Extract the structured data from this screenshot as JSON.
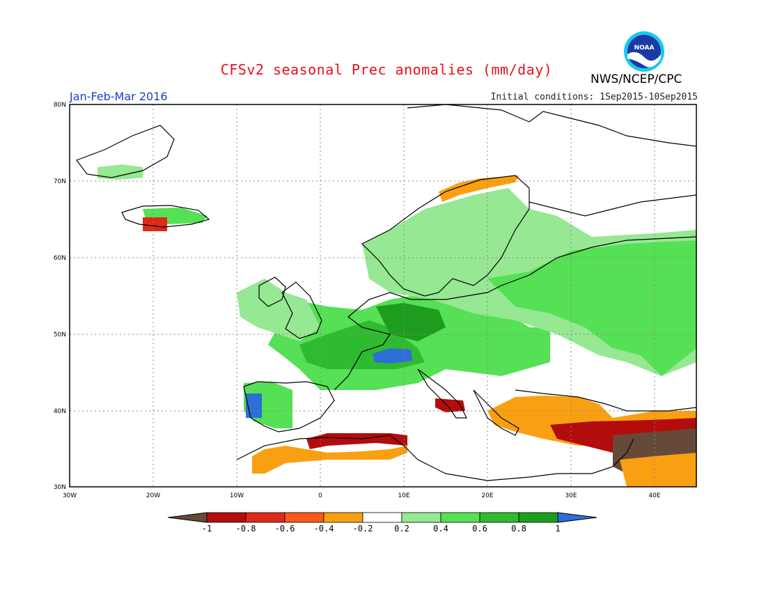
{
  "title": "CFSv2 seasonal Prec anomalies (mm/day)",
  "agency": "NWS/NCEP/CPC",
  "logo_text": "NOAA",
  "period": "Jan-Feb-Mar 2016",
  "initial_conditions": "Initial conditions: 1Sep2015-10Sep2015",
  "map": {
    "lon_range": [
      -30,
      45
    ],
    "lat_range": [
      30,
      80
    ],
    "lat_ticks": [
      "30N",
      "40N",
      "50N",
      "60N",
      "70N",
      "80N"
    ],
    "lon_ticks": [
      "30W",
      "20W",
      "10W",
      "0",
      "10E",
      "20E",
      "30E",
      "40E"
    ]
  },
  "colorbar": {
    "labels": [
      "-1",
      "-0.8",
      "-0.6",
      "-0.4",
      "-0.2",
      "0.2",
      "0.4",
      "0.6",
      "0.8",
      "1"
    ],
    "colors": [
      "#654a3a",
      "#b30c0c",
      "#dd2a1a",
      "#f75a1c",
      "#f9a012",
      "#ffffff",
      "#96e892",
      "#55e055",
      "#2fbb2f",
      "#1e9c1e",
      "#2d6fd6"
    ]
  },
  "colors": {
    "title": "#e8101a",
    "period": "#1b3cc8",
    "grid": "#888888"
  },
  "anomaly_regions": [
    {
      "name": "western-central-europe",
      "level": "0.6"
    },
    {
      "name": "alps",
      "level": "1"
    },
    {
      "name": "portugal",
      "level": "1"
    },
    {
      "name": "scandinavia-russia",
      "level": "0.4"
    },
    {
      "name": "north-africa-coast",
      "level": "-0.6"
    },
    {
      "name": "levant-east-mediterranean",
      "level": "-0.8"
    },
    {
      "name": "greece-turkey",
      "level": "-0.4"
    }
  ]
}
